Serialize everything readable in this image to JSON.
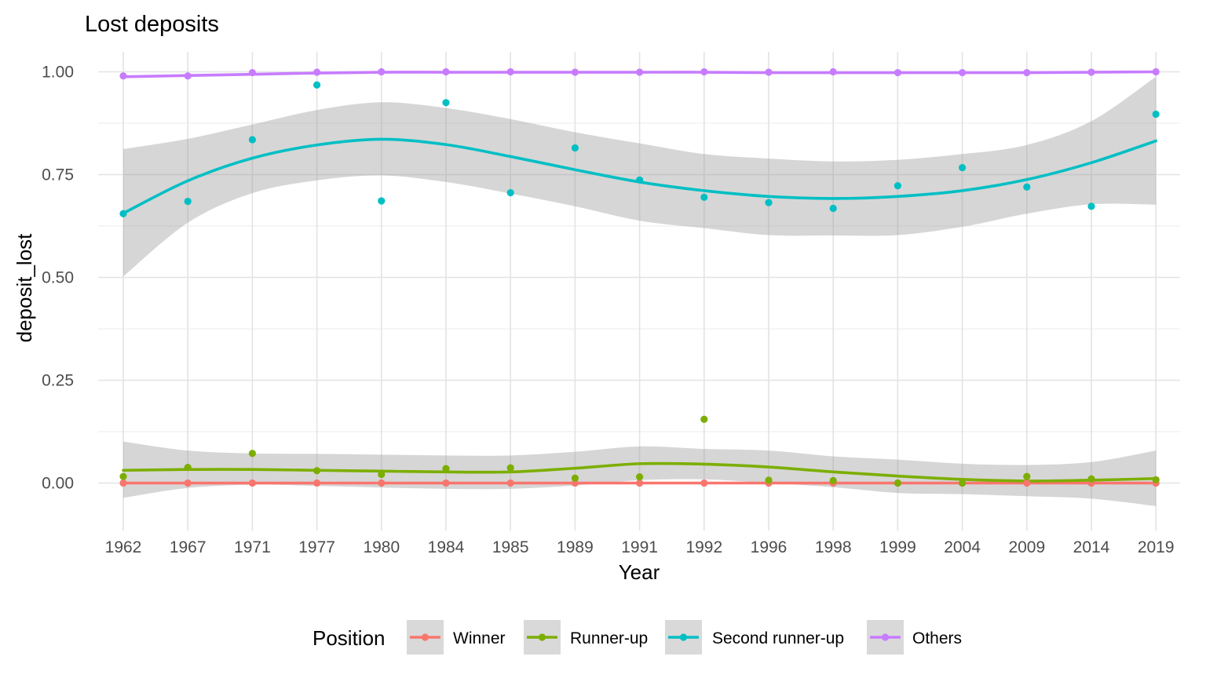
{
  "chart_data": {
    "type": "scatter",
    "title": "Lost deposits",
    "xlabel": "Year",
    "ylabel": "deposit_lost",
    "ylim": [
      -0.1,
      1.03
    ],
    "y_ticks": [
      "0.00",
      "0.25",
      "0.50",
      "0.75",
      "1.00"
    ],
    "categories": [
      "1962",
      "1967",
      "1971",
      "1977",
      "1980",
      "1984",
      "1985",
      "1989",
      "1991",
      "1992",
      "1996",
      "1998",
      "1999",
      "2004",
      "2009",
      "2014",
      "2019"
    ],
    "grid": true,
    "legend": {
      "title": "Position",
      "position": "bottom",
      "entries": [
        "Winner",
        "Runner-up",
        "Second runner-up",
        "Others"
      ]
    },
    "series": [
      {
        "name": "Winner",
        "color": "#F8766D",
        "points": [
          0,
          0,
          0,
          0,
          0,
          0,
          0,
          0,
          0,
          0,
          0,
          0,
          0,
          0,
          0,
          0,
          0
        ],
        "smooth": [
          0,
          0,
          0,
          0,
          0,
          0,
          0,
          0,
          0,
          0,
          0,
          0,
          0,
          0,
          0,
          0,
          0
        ],
        "ci_lower": [
          0,
          0,
          0,
          0,
          0,
          0,
          0,
          0,
          0,
          0,
          0,
          0,
          0,
          0,
          0,
          0,
          0
        ],
        "ci_upper": [
          0,
          0,
          0,
          0,
          0,
          0,
          0,
          0,
          0,
          0,
          0,
          0,
          0,
          0,
          0,
          0,
          0
        ]
      },
      {
        "name": "Runner-up",
        "color": "#7CAE00",
        "points": [
          0.016,
          0.038,
          0.072,
          0.03,
          0.021,
          0.035,
          0.037,
          0.012,
          0.015,
          0.155,
          0.007,
          0.006,
          0.0,
          0.0,
          0.016,
          0.01,
          0.008
        ],
        "smooth": [
          0.031,
          0.033,
          0.033,
          0.031,
          0.029,
          0.027,
          0.027,
          0.036,
          0.047,
          0.046,
          0.039,
          0.027,
          0.017,
          0.009,
          0.005,
          0.007,
          0.011
        ],
        "ci_lower": [
          -0.036,
          -0.012,
          -0.004,
          -0.007,
          -0.011,
          -0.014,
          -0.014,
          -0.006,
          0.007,
          0.009,
          0.0,
          -0.01,
          -0.024,
          -0.027,
          -0.032,
          -0.038,
          -0.056
        ],
        "ci_upper": [
          0.101,
          0.079,
          0.072,
          0.071,
          0.069,
          0.067,
          0.067,
          0.076,
          0.089,
          0.083,
          0.079,
          0.065,
          0.057,
          0.047,
          0.044,
          0.051,
          0.079
        ]
      },
      {
        "name": "Second runner-up",
        "color": "#00BFC4",
        "points": [
          0.655,
          0.685,
          0.835,
          0.968,
          0.686,
          0.925,
          0.706,
          0.815,
          0.737,
          0.695,
          0.682,
          0.668,
          0.723,
          0.767,
          0.72,
          0.673,
          0.897
        ],
        "smooth": [
          0.656,
          0.735,
          0.79,
          0.822,
          0.836,
          0.823,
          0.794,
          0.762,
          0.732,
          0.711,
          0.697,
          0.692,
          0.697,
          0.711,
          0.738,
          0.779,
          0.832
        ],
        "ci_lower": [
          0.502,
          0.633,
          0.705,
          0.736,
          0.748,
          0.732,
          0.704,
          0.673,
          0.638,
          0.62,
          0.603,
          0.602,
          0.603,
          0.623,
          0.655,
          0.678,
          0.677
        ],
        "ci_upper": [
          0.812,
          0.837,
          0.872,
          0.907,
          0.926,
          0.912,
          0.885,
          0.853,
          0.826,
          0.8,
          0.789,
          0.782,
          0.786,
          0.8,
          0.822,
          0.88,
          0.988
        ]
      },
      {
        "name": "Others",
        "color": "#C77CFF",
        "points": [
          0.99,
          0.99,
          0.998,
          0.999,
          1.0,
          1.0,
          1.0,
          0.999,
          0.999,
          1.0,
          0.999,
          1.0,
          0.998,
          0.998,
          0.998,
          0.999,
          1.0
        ],
        "smooth": [
          0.988,
          0.991,
          0.994,
          0.997,
          0.999,
          0.999,
          0.999,
          0.999,
          0.999,
          0.999,
          0.998,
          0.998,
          0.998,
          0.998,
          0.998,
          0.999,
          1.0
        ]
      }
    ]
  }
}
